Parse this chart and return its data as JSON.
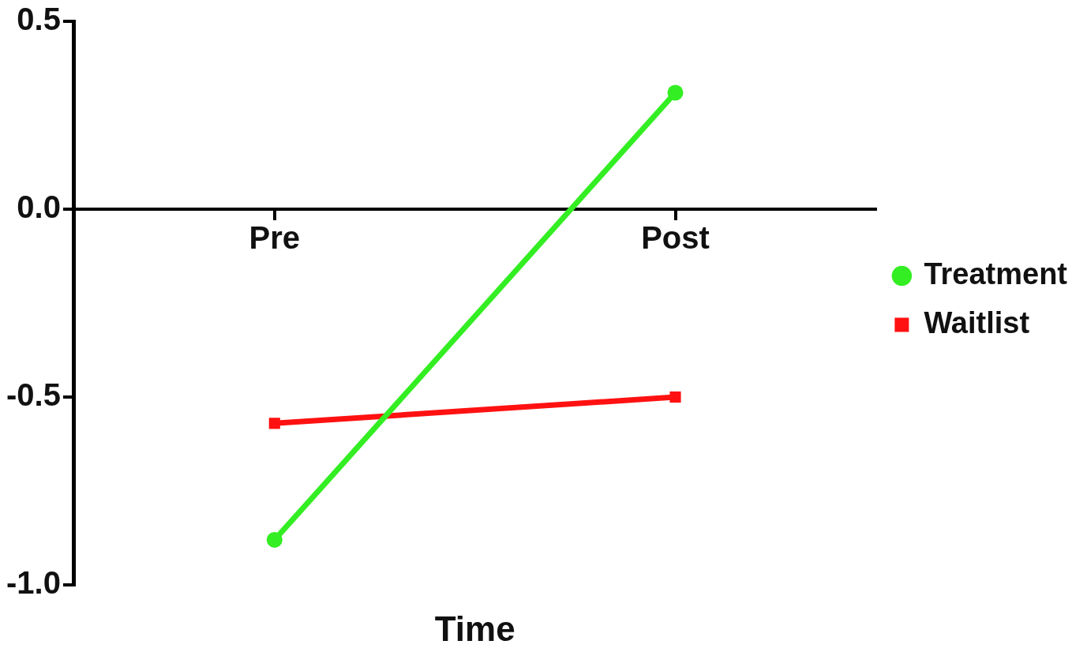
{
  "chart_data": {
    "type": "line",
    "xlabel": "Time",
    "categories": [
      "Pre",
      "Post"
    ],
    "series": [
      {
        "name": "Treatment",
        "color": "#33ee22",
        "values": [
          -0.88,
          0.31
        ],
        "marker": "circle"
      },
      {
        "name": "Waitlist",
        "color": "#ff1111",
        "values": [
          -0.57,
          -0.5
        ],
        "marker": "square"
      }
    ],
    "ylim": [
      -1.0,
      0.5
    ],
    "yticks": [
      {
        "value": -1.0,
        "label": "-1.0"
      },
      {
        "value": -0.5,
        "label": "-0.5"
      },
      {
        "value": 0,
        "label": "0.0"
      },
      {
        "value": 0.5,
        "label": "0.5"
      }
    ],
    "grid": false,
    "legend": "right",
    "line_style": "solid"
  }
}
